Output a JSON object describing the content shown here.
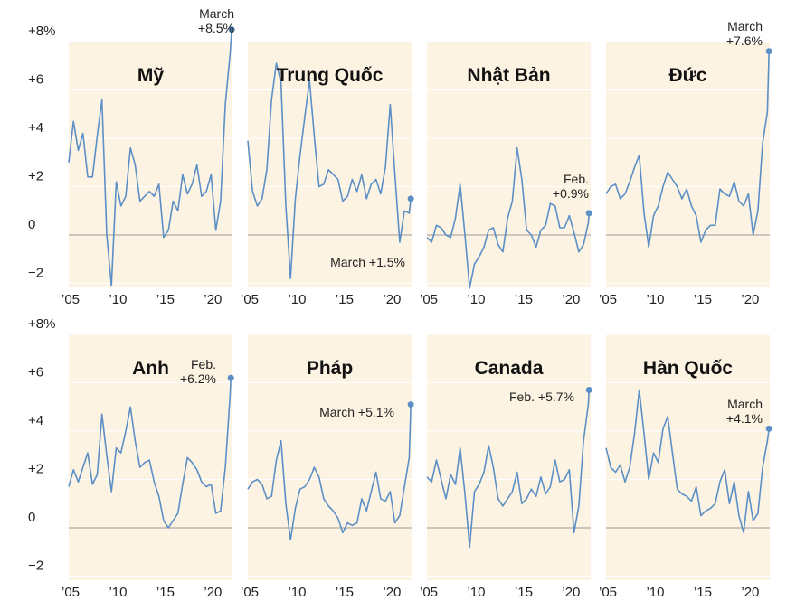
{
  "chart_data": {
    "type": "line",
    "x_range": [
      2005,
      2022.25
    ],
    "y_range": [
      -2.6,
      8.6
    ],
    "y_ticks": [
      {
        "value": 8,
        "label": "+8%"
      },
      {
        "value": 6,
        "label": "+6"
      },
      {
        "value": 4,
        "label": "+4"
      },
      {
        "value": 2,
        "label": "+2"
      },
      {
        "value": 0,
        "label": "0"
      },
      {
        "value": -2,
        "label": "−2"
      }
    ],
    "x_ticks": [
      {
        "value": 2005,
        "label": "’05"
      },
      {
        "value": 2010,
        "label": "’10"
      },
      {
        "value": 2015,
        "label": "’15"
      },
      {
        "value": 2020,
        "label": "’20"
      }
    ],
    "panels": [
      {
        "title": "Mỹ",
        "annotation": [
          "March",
          "+8.5%"
        ],
        "last": {
          "x": 2022.17,
          "y": 8.5
        },
        "points": [
          [
            2005,
            3.0
          ],
          [
            2005.5,
            4.7
          ],
          [
            2006,
            3.5
          ],
          [
            2006.5,
            4.2
          ],
          [
            2007,
            2.4
          ],
          [
            2007.5,
            2.4
          ],
          [
            2008,
            4.1
          ],
          [
            2008.5,
            5.6
          ],
          [
            2009,
            0.0
          ],
          [
            2009.5,
            -2.1
          ],
          [
            2010,
            2.2
          ],
          [
            2010.5,
            1.2
          ],
          [
            2011,
            1.6
          ],
          [
            2011.5,
            3.6
          ],
          [
            2012,
            2.9
          ],
          [
            2012.5,
            1.4
          ],
          [
            2013,
            1.6
          ],
          [
            2013.5,
            1.8
          ],
          [
            2014,
            1.6
          ],
          [
            2014.5,
            2.1
          ],
          [
            2015,
            -0.1
          ],
          [
            2015.5,
            0.2
          ],
          [
            2016,
            1.4
          ],
          [
            2016.5,
            1.0
          ],
          [
            2017,
            2.5
          ],
          [
            2017.5,
            1.7
          ],
          [
            2018,
            2.1
          ],
          [
            2018.5,
            2.9
          ],
          [
            2019,
            1.6
          ],
          [
            2019.5,
            1.8
          ],
          [
            2020,
            2.5
          ],
          [
            2020.5,
            0.2
          ],
          [
            2021,
            1.4
          ],
          [
            2021.5,
            5.4
          ],
          [
            2022,
            7.5
          ],
          [
            2022.17,
            8.5
          ]
        ]
      },
      {
        "title": "Trung Quốc",
        "annotation": [
          "March +1.5%"
        ],
        "last": {
          "x": 2022.17,
          "y": 1.5
        },
        "points": [
          [
            2005,
            3.9
          ],
          [
            2005.5,
            1.8
          ],
          [
            2006,
            1.2
          ],
          [
            2006.5,
            1.5
          ],
          [
            2007,
            2.7
          ],
          [
            2007.5,
            5.6
          ],
          [
            2008,
            7.1
          ],
          [
            2008.5,
            6.3
          ],
          [
            2009,
            1.2
          ],
          [
            2009.5,
            -1.8
          ],
          [
            2010,
            1.5
          ],
          [
            2010.5,
            3.3
          ],
          [
            2011,
            4.9
          ],
          [
            2011.5,
            6.4
          ],
          [
            2012,
            4.1
          ],
          [
            2012.5,
            2.0
          ],
          [
            2013,
            2.1
          ],
          [
            2013.5,
            2.7
          ],
          [
            2014,
            2.5
          ],
          [
            2014.5,
            2.3
          ],
          [
            2015,
            1.4
          ],
          [
            2015.5,
            1.6
          ],
          [
            2016,
            2.3
          ],
          [
            2016.5,
            1.8
          ],
          [
            2017,
            2.5
          ],
          [
            2017.5,
            1.5
          ],
          [
            2018,
            2.1
          ],
          [
            2018.5,
            2.3
          ],
          [
            2019,
            1.7
          ],
          [
            2019.5,
            2.8
          ],
          [
            2020,
            5.4
          ],
          [
            2020.5,
            2.5
          ],
          [
            2021,
            -0.3
          ],
          [
            2021.5,
            1.0
          ],
          [
            2022,
            0.9
          ],
          [
            2022.17,
            1.5
          ]
        ]
      },
      {
        "title": "Nhật Bản",
        "annotation": [
          "Feb.",
          "+0.9%"
        ],
        "last": {
          "x": 2022.08,
          "y": 0.9
        },
        "points": [
          [
            2005,
            -0.1
          ],
          [
            2005.5,
            -0.3
          ],
          [
            2006,
            0.4
          ],
          [
            2006.5,
            0.3
          ],
          [
            2007,
            0.0
          ],
          [
            2007.5,
            -0.1
          ],
          [
            2008,
            0.7
          ],
          [
            2008.5,
            2.1
          ],
          [
            2009,
            0.0
          ],
          [
            2009.5,
            -2.2
          ],
          [
            2010,
            -1.2
          ],
          [
            2010.5,
            -0.9
          ],
          [
            2011,
            -0.5
          ],
          [
            2011.5,
            0.2
          ],
          [
            2012,
            0.3
          ],
          [
            2012.5,
            -0.4
          ],
          [
            2013,
            -0.7
          ],
          [
            2013.5,
            0.7
          ],
          [
            2014,
            1.4
          ],
          [
            2014.5,
            3.6
          ],
          [
            2015,
            2.3
          ],
          [
            2015.5,
            0.2
          ],
          [
            2016,
            0.0
          ],
          [
            2016.5,
            -0.5
          ],
          [
            2017,
            0.2
          ],
          [
            2017.5,
            0.4
          ],
          [
            2018,
            1.3
          ],
          [
            2018.5,
            1.2
          ],
          [
            2019,
            0.3
          ],
          [
            2019.5,
            0.3
          ],
          [
            2020,
            0.8
          ],
          [
            2020.5,
            0.1
          ],
          [
            2021,
            -0.7
          ],
          [
            2021.5,
            -0.4
          ],
          [
            2022,
            0.5
          ],
          [
            2022.08,
            0.9
          ]
        ]
      },
      {
        "title": "Đức",
        "annotation": [
          "March",
          "+7.6%"
        ],
        "last": {
          "x": 2022.17,
          "y": 7.6
        },
        "points": [
          [
            2005,
            1.7
          ],
          [
            2005.5,
            2.0
          ],
          [
            2006,
            2.1
          ],
          [
            2006.5,
            1.5
          ],
          [
            2007,
            1.7
          ],
          [
            2007.5,
            2.2
          ],
          [
            2008,
            2.8
          ],
          [
            2008.5,
            3.3
          ],
          [
            2009,
            0.9
          ],
          [
            2009.5,
            -0.5
          ],
          [
            2010,
            0.8
          ],
          [
            2010.5,
            1.2
          ],
          [
            2011,
            2.0
          ],
          [
            2011.5,
            2.6
          ],
          [
            2012,
            2.3
          ],
          [
            2012.5,
            2.0
          ],
          [
            2013,
            1.5
          ],
          [
            2013.5,
            1.9
          ],
          [
            2014,
            1.2
          ],
          [
            2014.5,
            0.8
          ],
          [
            2015,
            -0.3
          ],
          [
            2015.5,
            0.2
          ],
          [
            2016,
            0.4
          ],
          [
            2016.5,
            0.4
          ],
          [
            2017,
            1.9
          ],
          [
            2017.5,
            1.7
          ],
          [
            2018,
            1.6
          ],
          [
            2018.5,
            2.2
          ],
          [
            2019,
            1.4
          ],
          [
            2019.5,
            1.2
          ],
          [
            2020,
            1.7
          ],
          [
            2020.5,
            0.0
          ],
          [
            2021,
            1.0
          ],
          [
            2021.5,
            3.8
          ],
          [
            2022,
            5.1
          ],
          [
            2022.17,
            7.6
          ]
        ]
      },
      {
        "title": "Anh",
        "annotation": [
          "Feb.",
          "+6.2%"
        ],
        "last": {
          "x": 2022.08,
          "y": 6.2
        },
        "points": [
          [
            2005,
            1.7
          ],
          [
            2005.5,
            2.4
          ],
          [
            2006,
            1.9
          ],
          [
            2006.5,
            2.5
          ],
          [
            2007,
            3.1
          ],
          [
            2007.5,
            1.8
          ],
          [
            2008,
            2.2
          ],
          [
            2008.5,
            4.7
          ],
          [
            2009,
            3.0
          ],
          [
            2009.5,
            1.5
          ],
          [
            2010,
            3.3
          ],
          [
            2010.5,
            3.1
          ],
          [
            2011,
            4.0
          ],
          [
            2011.5,
            5.0
          ],
          [
            2012,
            3.6
          ],
          [
            2012.5,
            2.5
          ],
          [
            2013,
            2.7
          ],
          [
            2013.5,
            2.8
          ],
          [
            2014,
            1.9
          ],
          [
            2014.5,
            1.3
          ],
          [
            2015,
            0.3
          ],
          [
            2015.5,
            0.0
          ],
          [
            2016,
            0.3
          ],
          [
            2016.5,
            0.6
          ],
          [
            2017,
            1.8
          ],
          [
            2017.5,
            2.9
          ],
          [
            2018,
            2.7
          ],
          [
            2018.5,
            2.4
          ],
          [
            2019,
            1.9
          ],
          [
            2019.5,
            1.7
          ],
          [
            2020,
            1.8
          ],
          [
            2020.5,
            0.6
          ],
          [
            2021,
            0.7
          ],
          [
            2021.5,
            2.5
          ],
          [
            2022,
            5.5
          ],
          [
            2022.08,
            6.2
          ]
        ]
      },
      {
        "title": "Pháp",
        "annotation": [
          "March +5.1%"
        ],
        "last": {
          "x": 2022.17,
          "y": 5.1
        },
        "points": [
          [
            2005,
            1.6
          ],
          [
            2005.5,
            1.9
          ],
          [
            2006,
            2.0
          ],
          [
            2006.5,
            1.8
          ],
          [
            2007,
            1.2
          ],
          [
            2007.5,
            1.3
          ],
          [
            2008,
            2.8
          ],
          [
            2008.5,
            3.6
          ],
          [
            2009,
            1.0
          ],
          [
            2009.5,
            -0.5
          ],
          [
            2010,
            0.8
          ],
          [
            2010.5,
            1.6
          ],
          [
            2011,
            1.7
          ],
          [
            2011.5,
            2.0
          ],
          [
            2012,
            2.5
          ],
          [
            2012.5,
            2.1
          ],
          [
            2013,
            1.2
          ],
          [
            2013.5,
            0.9
          ],
          [
            2014,
            0.7
          ],
          [
            2014.5,
            0.4
          ],
          [
            2015,
            -0.2
          ],
          [
            2015.5,
            0.2
          ],
          [
            2016,
            0.1
          ],
          [
            2016.5,
            0.2
          ],
          [
            2017,
            1.2
          ],
          [
            2017.5,
            0.7
          ],
          [
            2018,
            1.5
          ],
          [
            2018.5,
            2.3
          ],
          [
            2019,
            1.2
          ],
          [
            2019.5,
            1.1
          ],
          [
            2020,
            1.5
          ],
          [
            2020.5,
            0.2
          ],
          [
            2021,
            0.5
          ],
          [
            2021.5,
            1.7
          ],
          [
            2022,
            2.9
          ],
          [
            2022.17,
            5.1
          ]
        ]
      },
      {
        "title": "Canada",
        "annotation": [
          "Feb. +5.7%"
        ],
        "last": {
          "x": 2022.08,
          "y": 5.7
        },
        "points": [
          [
            2005,
            2.1
          ],
          [
            2005.5,
            1.9
          ],
          [
            2006,
            2.8
          ],
          [
            2006.5,
            2.0
          ],
          [
            2007,
            1.2
          ],
          [
            2007.5,
            2.2
          ],
          [
            2008,
            1.8
          ],
          [
            2008.5,
            3.3
          ],
          [
            2009,
            1.4
          ],
          [
            2009.5,
            -0.8
          ],
          [
            2010,
            1.5
          ],
          [
            2010.5,
            1.8
          ],
          [
            2011,
            2.3
          ],
          [
            2011.5,
            3.4
          ],
          [
            2012,
            2.5
          ],
          [
            2012.5,
            1.2
          ],
          [
            2013,
            0.9
          ],
          [
            2013.5,
            1.2
          ],
          [
            2014,
            1.5
          ],
          [
            2014.5,
            2.3
          ],
          [
            2015,
            1.0
          ],
          [
            2015.5,
            1.2
          ],
          [
            2016,
            1.6
          ],
          [
            2016.5,
            1.3
          ],
          [
            2017,
            2.1
          ],
          [
            2017.5,
            1.4
          ],
          [
            2018,
            1.7
          ],
          [
            2018.5,
            2.8
          ],
          [
            2019,
            1.9
          ],
          [
            2019.5,
            2.0
          ],
          [
            2020,
            2.4
          ],
          [
            2020.5,
            -0.2
          ],
          [
            2021,
            0.9
          ],
          [
            2021.5,
            3.6
          ],
          [
            2022,
            5.1
          ],
          [
            2022.08,
            5.7
          ]
        ]
      },
      {
        "title": "Hàn Quốc",
        "annotation": [
          "March",
          "+4.1%"
        ],
        "last": {
          "x": 2022.17,
          "y": 4.1
        },
        "points": [
          [
            2005,
            3.3
          ],
          [
            2005.5,
            2.5
          ],
          [
            2006,
            2.3
          ],
          [
            2006.5,
            2.6
          ],
          [
            2007,
            1.9
          ],
          [
            2007.5,
            2.5
          ],
          [
            2008,
            3.9
          ],
          [
            2008.5,
            5.7
          ],
          [
            2009,
            3.9
          ],
          [
            2009.5,
            2.0
          ],
          [
            2010,
            3.1
          ],
          [
            2010.5,
            2.7
          ],
          [
            2011,
            4.1
          ],
          [
            2011.5,
            4.6
          ],
          [
            2012,
            3.1
          ],
          [
            2012.5,
            1.6
          ],
          [
            2013,
            1.4
          ],
          [
            2013.5,
            1.3
          ],
          [
            2014,
            1.1
          ],
          [
            2014.5,
            1.7
          ],
          [
            2015,
            0.5
          ],
          [
            2015.5,
            0.7
          ],
          [
            2016,
            0.8
          ],
          [
            2016.5,
            1.0
          ],
          [
            2017,
            1.9
          ],
          [
            2017.5,
            2.4
          ],
          [
            2018,
            1.0
          ],
          [
            2018.5,
            1.9
          ],
          [
            2019,
            0.5
          ],
          [
            2019.5,
            -0.2
          ],
          [
            2020,
            1.5
          ],
          [
            2020.5,
            0.3
          ],
          [
            2021,
            0.6
          ],
          [
            2021.5,
            2.5
          ],
          [
            2022,
            3.6
          ],
          [
            2022.17,
            4.1
          ]
        ]
      }
    ]
  }
}
